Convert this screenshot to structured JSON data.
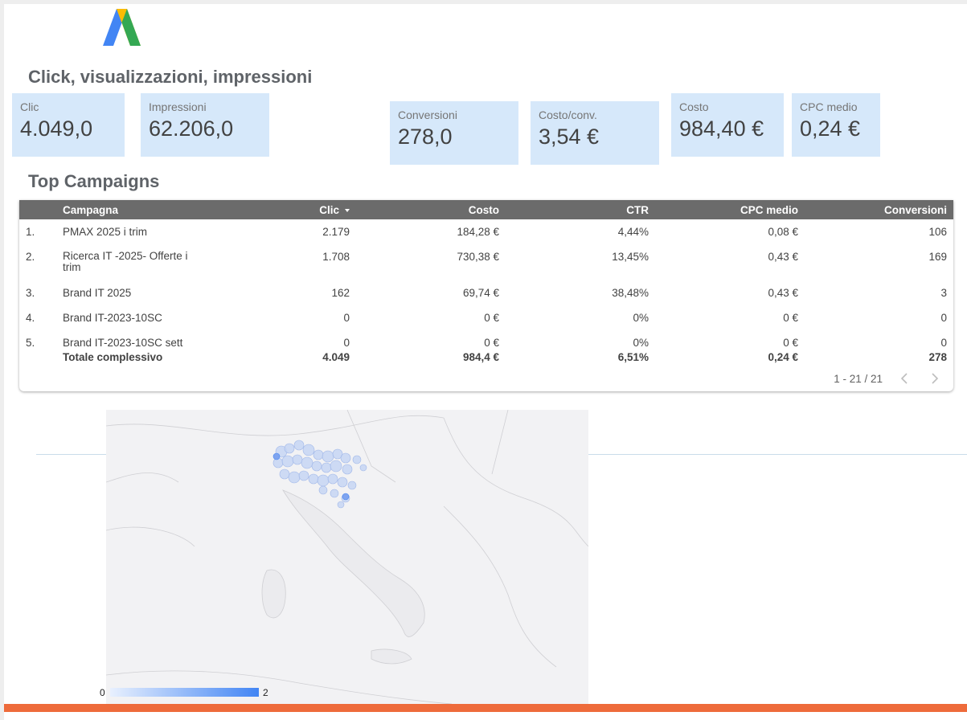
{
  "colors": {
    "kpi_bg": "#d6e8fa",
    "header_bg": "#6b6b6b",
    "footer_accent": "#ee6b3b",
    "map_max": "#4285f4",
    "map_min": "#e8f0fe"
  },
  "icons": {
    "logo": "google-ads-logo"
  },
  "sections": {
    "clicks_title": "Click, visualizzazioni, impressioni",
    "campaigns_title": "Top Campaigns"
  },
  "kpis": {
    "clic": {
      "label": "Clic",
      "value": "4.049,0"
    },
    "impressioni": {
      "label": "Impressioni",
      "value": "62.206,0"
    },
    "conversioni": {
      "label": "Conversioni",
      "value": "278,0"
    },
    "costo_conv": {
      "label": "Costo/conv.",
      "value": "3,54 €"
    },
    "costo": {
      "label": "Costo",
      "value": "984,40 €"
    },
    "cpc": {
      "label": "CPC medio",
      "value": "0,24 €"
    }
  },
  "table": {
    "headers": [
      "Campagna",
      "Clic",
      "Costo",
      "CTR",
      "CPC medio",
      "Conversioni"
    ],
    "rows": [
      {
        "idx": "1.",
        "name": "PMAX 2025 i trim",
        "clic": "2.179",
        "costo": "184,28 €",
        "ctr": "4,44%",
        "cpc": "0,08 €",
        "conv": "106"
      },
      {
        "idx": "2.",
        "name": "Ricerca IT -2025- Offerte i trim",
        "clic": "1.708",
        "costo": "730,38 €",
        "ctr": "13,45%",
        "cpc": "0,43 €",
        "conv": "169"
      },
      {
        "idx": "3.",
        "name": "Brand IT 2025",
        "clic": "162",
        "costo": "69,74 €",
        "ctr": "38,48%",
        "cpc": "0,43 €",
        "conv": "3"
      },
      {
        "idx": "4.",
        "name": "Brand IT-2023-10SC",
        "clic": "0",
        "costo": "0 €",
        "ctr": "0%",
        "cpc": "0 €",
        "conv": "0"
      },
      {
        "idx": "5.",
        "name": "Brand IT-2023-10SC sett",
        "clic": "0",
        "costo": "0 €",
        "ctr": "0%",
        "cpc": "0 €",
        "conv": "0"
      }
    ],
    "total": {
      "label": "Totale complessivo",
      "clic": "4.049",
      "costo": "984,4 €",
      "ctr": "6,51%",
      "cpc": "0,24 €",
      "conv": "278"
    },
    "pagination": "1 - 21 / 21"
  },
  "map": {
    "legend_min": "0",
    "legend_max": "2"
  }
}
